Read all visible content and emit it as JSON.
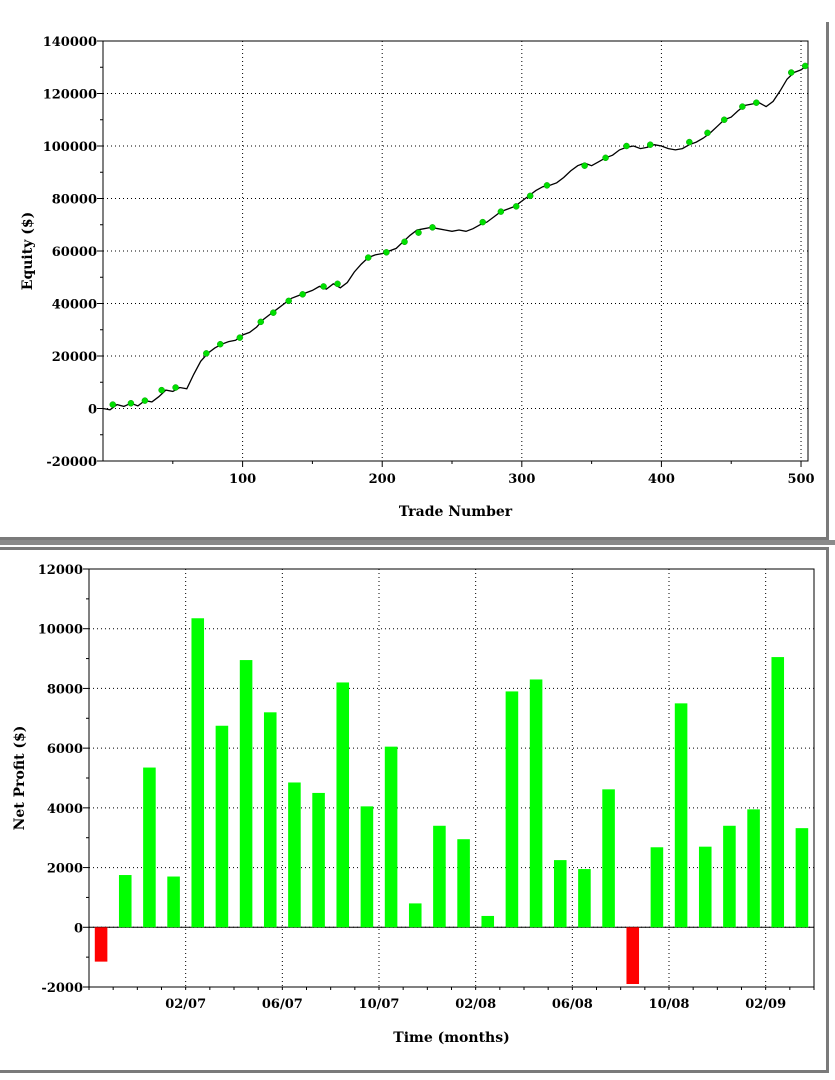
{
  "charts": [
    {
      "type": "line",
      "xlabel": "Trade Number",
      "ylabel": "Equity ($)",
      "xlim": [
        0,
        505
      ],
      "ylim": [
        -20000,
        140000
      ],
      "x_ticks": [
        100,
        200,
        300,
        400,
        500
      ],
      "y_ticks": [
        -20000,
        0,
        20000,
        40000,
        60000,
        80000,
        100000,
        120000,
        140000
      ],
      "grid": true,
      "line_color": "#000000",
      "marker_color": "#00e000",
      "series": [
        {
          "x": [
            0,
            5,
            10,
            15,
            20,
            25,
            30,
            35,
            40,
            45,
            50,
            55,
            60,
            65,
            70,
            75,
            80,
            85,
            90,
            95,
            100,
            105,
            110,
            115,
            120,
            125,
            130,
            135,
            140,
            145,
            150,
            155,
            160,
            165,
            170,
            175,
            180,
            185,
            190,
            195,
            200,
            205,
            210,
            215,
            220,
            225,
            230,
            235,
            240,
            245,
            250,
            255,
            260,
            265,
            270,
            275,
            280,
            285,
            290,
            295,
            300,
            305,
            310,
            315,
            320,
            325,
            330,
            335,
            340,
            345,
            350,
            355,
            360,
            365,
            370,
            375,
            380,
            385,
            390,
            395,
            400,
            405,
            410,
            415,
            420,
            425,
            430,
            435,
            440,
            445,
            450,
            455,
            460,
            465,
            470,
            475,
            480,
            485,
            490,
            495,
            500,
            505
          ],
          "y": [
            0,
            -500,
            1500,
            800,
            2000,
            1000,
            3000,
            2500,
            4500,
            7000,
            6500,
            8000,
            7500,
            13000,
            18000,
            21000,
            23000,
            24500,
            25500,
            26000,
            28000,
            29000,
            31000,
            34000,
            36000,
            38000,
            40000,
            42000,
            43000,
            44000,
            45000,
            46500,
            45500,
            47500,
            46000,
            48000,
            52000,
            55000,
            57500,
            58500,
            59000,
            60000,
            61000,
            63500,
            66000,
            68000,
            68500,
            69000,
            68500,
            68000,
            67500,
            68000,
            67500,
            68500,
            70000,
            71000,
            73000,
            75000,
            76000,
            77000,
            79000,
            81000,
            83000,
            84500,
            85000,
            86000,
            88000,
            90500,
            92500,
            93500,
            92500,
            94000,
            95500,
            96500,
            98500,
            99500,
            100000,
            99000,
            99500,
            100500,
            100000,
            99000,
            98500,
            99000,
            100500,
            101500,
            103000,
            105000,
            107500,
            110000,
            111000,
            113500,
            115500,
            116000,
            116500,
            115000,
            117000,
            121000,
            125500,
            128000,
            129000,
            131000
          ]
        }
      ],
      "markers": [
        {
          "x": 7,
          "y": 1500
        },
        {
          "x": 20,
          "y": 2000
        },
        {
          "x": 30,
          "y": 3000
        },
        {
          "x": 42,
          "y": 7000
        },
        {
          "x": 52,
          "y": 8000
        },
        {
          "x": 74,
          "y": 21000
        },
        {
          "x": 84,
          "y": 24500
        },
        {
          "x": 98,
          "y": 27000
        },
        {
          "x": 113,
          "y": 33000
        },
        {
          "x": 122,
          "y": 36500
        },
        {
          "x": 133,
          "y": 41000
        },
        {
          "x": 143,
          "y": 43500
        },
        {
          "x": 158,
          "y": 46500
        },
        {
          "x": 168,
          "y": 47500
        },
        {
          "x": 190,
          "y": 57500
        },
        {
          "x": 203,
          "y": 59500
        },
        {
          "x": 216,
          "y": 63500
        },
        {
          "x": 226,
          "y": 67000
        },
        {
          "x": 236,
          "y": 69000
        },
        {
          "x": 272,
          "y": 71000
        },
        {
          "x": 285,
          "y": 75000
        },
        {
          "x": 296,
          "y": 77000
        },
        {
          "x": 306,
          "y": 81000
        },
        {
          "x": 318,
          "y": 85000
        },
        {
          "x": 345,
          "y": 92500
        },
        {
          "x": 360,
          "y": 95500
        },
        {
          "x": 375,
          "y": 100000
        },
        {
          "x": 392,
          "y": 100500
        },
        {
          "x": 420,
          "y": 101500
        },
        {
          "x": 433,
          "y": 105000
        },
        {
          "x": 445,
          "y": 110000
        },
        {
          "x": 458,
          "y": 115000
        },
        {
          "x": 468,
          "y": 116500
        },
        {
          "x": 493,
          "y": 128000
        },
        {
          "x": 503,
          "y": 130500
        }
      ]
    },
    {
      "type": "bar",
      "xlabel": "Time (months)",
      "ylabel": "Net Profit ($)",
      "ylim": [
        -2000,
        12000
      ],
      "y_ticks": [
        -2000,
        0,
        2000,
        4000,
        6000,
        8000,
        10000,
        12000
      ],
      "x_tick_labels": [
        "02/07",
        "06/07",
        "10/07",
        "02/08",
        "06/08",
        "10/08",
        "02/09"
      ],
      "x_tick_index": [
        3.5,
        7.5,
        11.5,
        15.5,
        19.5,
        23.5,
        27.5
      ],
      "grid": true,
      "positive_color": "#00ff00",
      "negative_color": "#ff0000",
      "values": [
        -1150,
        1750,
        5350,
        1700,
        10350,
        6750,
        8950,
        7200,
        4850,
        4500,
        8200,
        4050,
        6050,
        800,
        3400,
        2950,
        380,
        7900,
        8300,
        2250,
        1950,
        4620,
        -1900,
        2680,
        7500,
        2700,
        3400,
        3950,
        9050,
        3320
      ]
    }
  ]
}
